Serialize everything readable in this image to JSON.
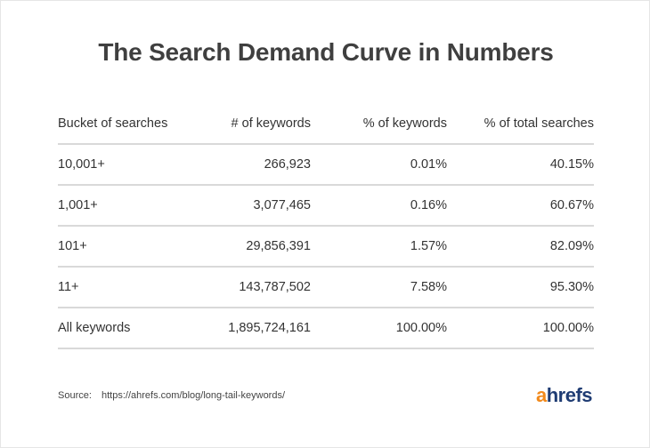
{
  "title": "The Search Demand Curve in Numbers",
  "chart_data": {
    "type": "table",
    "title": "The Search Demand Curve in Numbers",
    "columns": [
      "Bucket of searches",
      "# of keywords",
      "% of keywords",
      "% of total searches"
    ],
    "rows": [
      [
        "10,001+",
        "266,923",
        "0.01%",
        "40.15%"
      ],
      [
        "1,001+",
        "3,077,465",
        "0.16%",
        "60.67%"
      ],
      [
        "101+",
        "29,856,391",
        "1.57%",
        "82.09%"
      ],
      [
        "11+",
        "143,787,502",
        "7.58%",
        "95.30%"
      ],
      [
        "All keywords",
        "1,895,724,161",
        "100.00%",
        "100.00%"
      ]
    ]
  },
  "source": {
    "label": "Source:",
    "url": "https://ahrefs.com/blog/long-tail-keywords/"
  },
  "logo": {
    "first_letter": "a",
    "rest": "hrefs",
    "accent_color": "#f28a1c",
    "brand_color": "#1f3c73"
  }
}
